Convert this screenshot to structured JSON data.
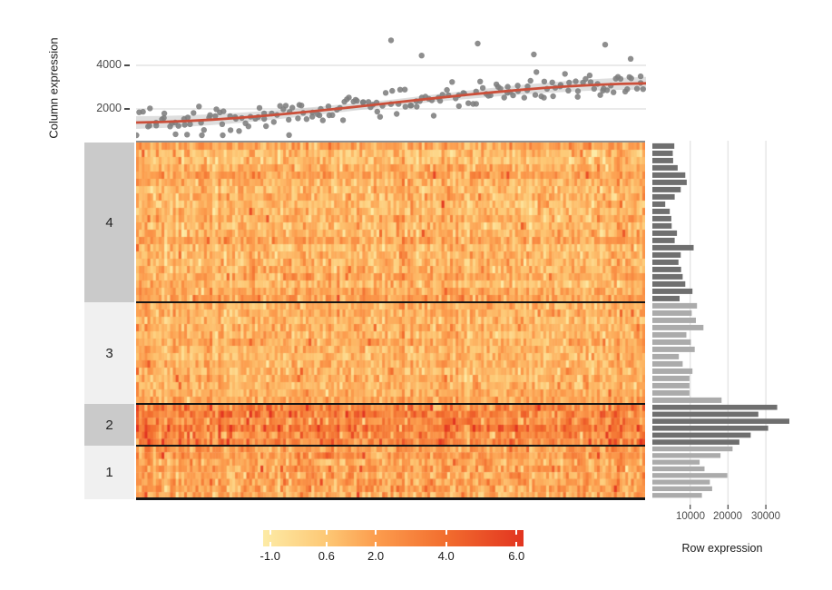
{
  "chart_data": [
    {
      "type": "scatter",
      "title": "",
      "ylabel": "Column expression",
      "y_ticks": [
        2000,
        4000
      ],
      "y_tick_labels": [
        "2000",
        "4000"
      ],
      "y_range": [
        600,
        5400
      ],
      "n_points": 180,
      "point_color": "#7e7e7e",
      "grid_color": "#e3e3e3",
      "trend": {
        "start": 1375,
        "end": 3175,
        "shape": "smoothstep",
        "color": "#cb4f3a",
        "band_color": "#c2c2c2"
      },
      "noise_sd": 340,
      "outliers": [
        [
          0.1,
          820
        ],
        [
          0.17,
          760
        ],
        [
          0.3,
          800
        ],
        [
          0.5,
          5150
        ],
        [
          0.56,
          4450
        ],
        [
          0.67,
          5000
        ],
        [
          0.78,
          4500
        ],
        [
          0.92,
          4950
        ],
        [
          0.97,
          4300
        ]
      ],
      "seed": 42
    },
    {
      "type": "heatmap",
      "n_cols": 180,
      "palette_stops": [
        [
          -1.2,
          "#FDEBA6"
        ],
        [
          0.6,
          "#FDC875"
        ],
        [
          2.0,
          "#FC9D4E"
        ],
        [
          4.0,
          "#F26D2E"
        ],
        [
          6.2,
          "#E23420"
        ]
      ],
      "value_domain": [
        -1.2,
        6.2
      ],
      "separator_color": "#151515",
      "groups": [
        {
          "label": "4",
          "n_rows": 22,
          "block_color": "#cacaca",
          "noise_sd": 0.85,
          "hot_p": 0.012,
          "row_bases": [
            1.7,
            0.9,
            0.8,
            1.5,
            1.9,
            1.2,
            1.0,
            1.3,
            0.9,
            1.1,
            1.4,
            1.0,
            1.2,
            1.8,
            1.0,
            1.2,
            1.1,
            1.3,
            1.5,
            1.1,
            1.6,
            1.9
          ]
        },
        {
          "label": "3",
          "n_rows": 14,
          "block_color": "#f0f0f0",
          "noise_sd": 0.8,
          "hot_p": 0.012,
          "row_bases": [
            1.2,
            1.4,
            1.0,
            1.3,
            1.1,
            1.5,
            1.2,
            1.0,
            1.4,
            1.1,
            1.3,
            1.2,
            1.4,
            1.6
          ]
        },
        {
          "label": "2",
          "n_rows": 6,
          "block_color": "#cacaca",
          "noise_sd": 1.1,
          "hot_p": 0.05,
          "row_bases": [
            2.8,
            3.2,
            2.6,
            3.4,
            2.7,
            3.0
          ]
        },
        {
          "label": "1",
          "n_rows": 8,
          "block_color": "#f0f0f0",
          "noise_sd": 0.9,
          "hot_p": 0.015,
          "row_bases": [
            1.9,
            2.1,
            1.7,
            2.0,
            1.6,
            1.9,
            1.8,
            1.7
          ]
        }
      ],
      "seed": 7
    },
    {
      "type": "bar",
      "xlabel": "Row expression",
      "x_ticks": [
        10000,
        20000,
        30000
      ],
      "x_tick_labels": [
        "10000",
        "20000",
        "30000"
      ],
      "xlim": [
        0,
        37500
      ],
      "grid_color": "#e5e5e5",
      "series": [
        {
          "group": "4",
          "color": "#6f6f6f",
          "values": [
            5800,
            5400,
            5500,
            6700,
            8700,
            9100,
            7500,
            5900,
            3400,
            4600,
            5000,
            5100,
            6500,
            5900,
            10900,
            7500,
            6900,
            7600,
            8000,
            8700,
            10600,
            7200
          ]
        },
        {
          "group": "3",
          "color": "#ababab",
          "values": [
            11800,
            10400,
            11500,
            13500,
            9000,
            10200,
            11200,
            7000,
            8000,
            10600,
            9800,
            9800,
            9800,
            18300
          ]
        },
        {
          "group": "2",
          "color": "#6f6f6f",
          "values": [
            33000,
            28000,
            36200,
            30600,
            26000,
            23000
          ]
        },
        {
          "group": "1",
          "color": "#ababab",
          "values": [
            21200,
            18000,
            12500,
            13800,
            19800,
            15200,
            15800,
            13100
          ]
        }
      ]
    }
  ],
  "legend": {
    "labels": [
      "-1.0",
      "0.6",
      "2.0",
      "4.0",
      "6.0"
    ],
    "values": [
      -1.0,
      0.6,
      2.0,
      4.0,
      6.0
    ],
    "domain": [
      -1.2,
      6.2
    ]
  }
}
